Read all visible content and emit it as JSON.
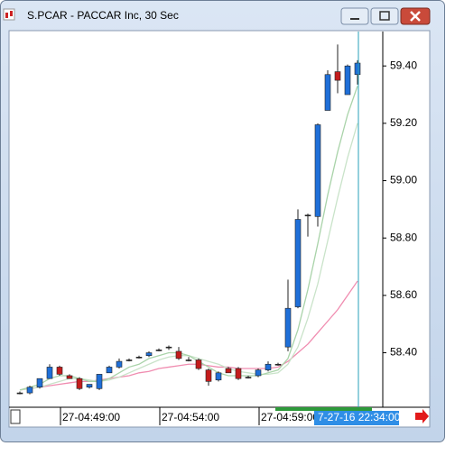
{
  "window_title": "S.PCAR - PACCAR Inc, 30 Sec",
  "chart_data": {
    "type": "candlestick",
    "categories": [
      null,
      null,
      null,
      null,
      "27-04:49:00",
      null,
      null,
      null,
      null,
      null,
      null,
      null,
      null,
      null,
      "27-04:54:00",
      null,
      null,
      null,
      null,
      null,
      null,
      null,
      null,
      null,
      "27-04:59:00",
      null,
      null,
      null,
      null,
      null,
      null,
      null,
      null,
      null,
      null
    ],
    "open": [
      58.26,
      58.26,
      58.28,
      58.31,
      58.35,
      58.32,
      58.31,
      58.28,
      58.275,
      58.33,
      58.35,
      58.375,
      58.385,
      58.39,
      58.41,
      58.42,
      58.405,
      58.375,
      58.375,
      58.34,
      58.305,
      58.345,
      58.345,
      58.315,
      58.32,
      58.34,
      58.36,
      58.42,
      58.56,
      58.88,
      58.875,
      59.245,
      59.38,
      59.3,
      59.37
    ],
    "high": [
      58.265,
      58.285,
      58.31,
      58.36,
      58.355,
      58.325,
      58.315,
      58.29,
      58.325,
      58.355,
      58.38,
      58.38,
      58.39,
      58.405,
      58.415,
      58.425,
      58.42,
      58.385,
      58.38,
      58.345,
      58.335,
      58.35,
      58.35,
      58.32,
      58.345,
      58.37,
      58.365,
      58.655,
      58.9,
      58.885,
      59.2,
      59.385,
      59.475,
      59.405,
      59.42
    ],
    "low": [
      58.255,
      58.255,
      58.275,
      58.31,
      58.32,
      58.31,
      58.27,
      58.275,
      58.27,
      58.33,
      58.345,
      58.37,
      58.38,
      58.385,
      58.405,
      58.41,
      58.375,
      58.37,
      58.34,
      58.285,
      58.3,
      58.33,
      58.305,
      58.31,
      58.315,
      58.335,
      58.355,
      58.405,
      58.555,
      58.805,
      58.84,
      59.245,
      59.305,
      59.3,
      59.335
    ],
    "close": [
      58.26,
      58.28,
      58.31,
      58.35,
      58.325,
      58.31,
      58.275,
      58.29,
      58.325,
      58.35,
      58.37,
      58.375,
      58.385,
      58.4,
      58.41,
      58.42,
      58.38,
      58.375,
      58.345,
      58.3,
      58.33,
      58.33,
      58.31,
      58.315,
      58.34,
      58.36,
      58.36,
      58.555,
      58.865,
      58.88,
      59.195,
      59.37,
      59.35,
      59.4,
      59.41
    ],
    "up_color": "#1f6fd8",
    "down_color": "#c41c1c",
    "flat_color": "#222222",
    "lines": [
      {
        "color": "#f08cb0",
        "values": [
          58.27,
          58.275,
          58.28,
          58.285,
          58.29,
          58.295,
          58.3,
          58.3,
          58.305,
          58.31,
          58.315,
          58.32,
          58.33,
          58.335,
          58.345,
          58.35,
          58.355,
          58.36,
          58.36,
          58.355,
          58.35,
          58.35,
          58.345,
          58.345,
          58.345,
          58.345,
          58.35,
          58.37,
          58.4,
          58.43,
          58.47,
          58.51,
          58.55,
          58.6,
          58.65
        ]
      },
      {
        "color": "#c9e3c9",
        "values": [
          58.27,
          58.275,
          58.28,
          58.29,
          58.3,
          58.31,
          58.31,
          58.305,
          58.3,
          58.305,
          58.315,
          58.33,
          58.345,
          58.36,
          58.375,
          58.385,
          58.39,
          58.39,
          58.38,
          58.37,
          58.36,
          58.345,
          58.335,
          58.33,
          58.325,
          58.325,
          58.33,
          58.36,
          58.42,
          58.52,
          58.64,
          58.79,
          58.94,
          59.08,
          59.2
        ]
      },
      {
        "color": "#a9d3a9",
        "values": [
          58.27,
          58.28,
          58.29,
          58.31,
          58.32,
          58.32,
          58.31,
          58.3,
          58.3,
          58.31,
          58.33,
          58.35,
          58.36,
          58.38,
          58.39,
          58.4,
          58.4,
          58.39,
          58.37,
          58.35,
          58.33,
          58.32,
          58.32,
          58.32,
          58.32,
          58.33,
          58.34,
          58.38,
          58.48,
          58.62,
          58.78,
          58.95,
          59.1,
          59.23,
          59.33
        ]
      }
    ],
    "ylim": [
      58.21,
      59.52
    ],
    "yticks": [
      {
        "value": 58.4,
        "label": "58.40"
      },
      {
        "value": 58.6,
        "label": "58.60"
      },
      {
        "value": 58.8,
        "label": "58.80"
      },
      {
        "value": 59.0,
        "label": "59.00"
      },
      {
        "value": 59.2,
        "label": "59.20"
      },
      {
        "value": 59.4,
        "label": "59.40"
      }
    ],
    "cursor_label": "7-27-16 22:34:00"
  }
}
